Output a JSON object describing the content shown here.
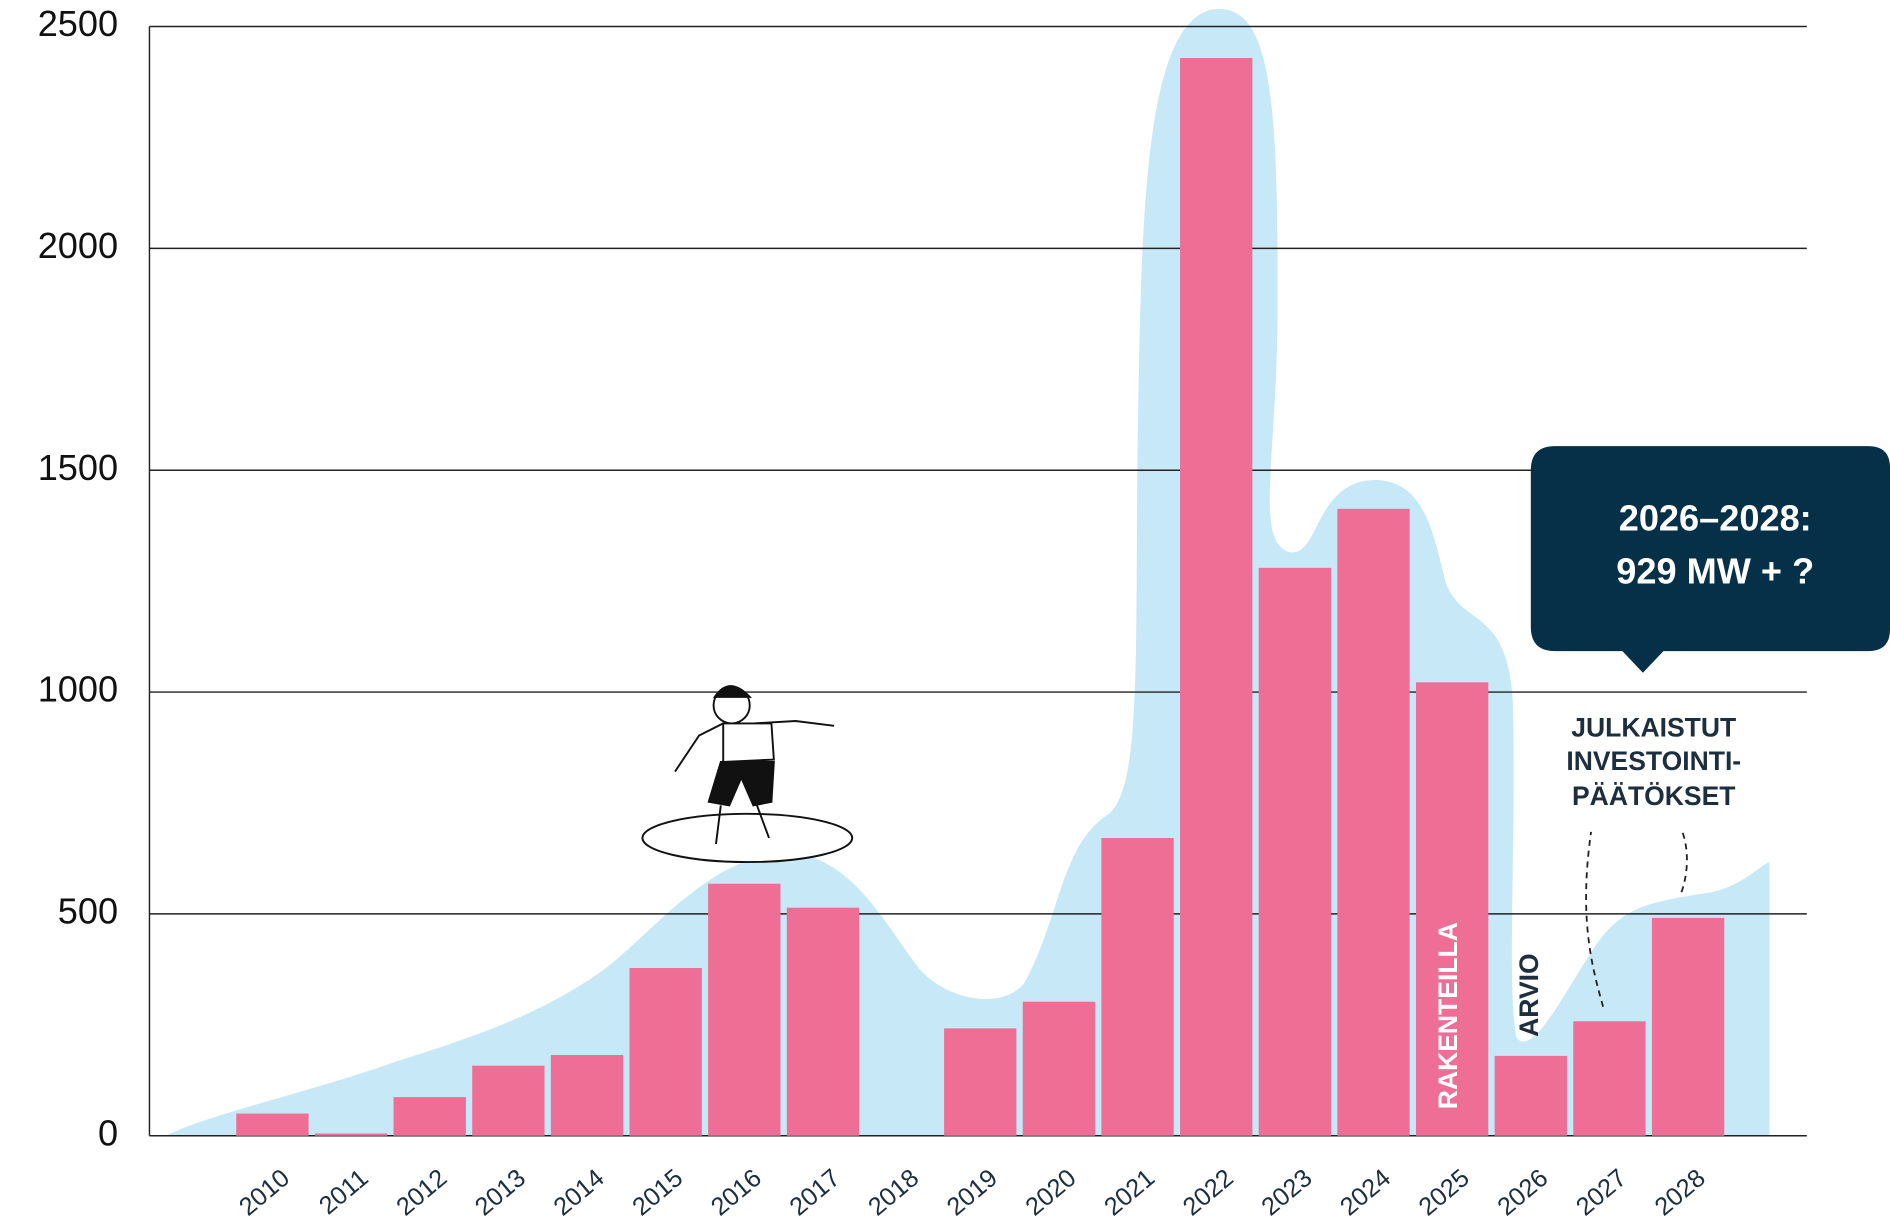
{
  "chart_data": {
    "type": "bar",
    "categories": [
      "2010",
      "2011",
      "2012",
      "2013",
      "2014",
      "2015",
      "2016",
      "2017",
      "2018",
      "2019",
      "2020",
      "2021",
      "2022",
      "2023",
      "2024",
      "2025",
      "2026",
      "2027",
      "2028"
    ],
    "values": [
      50,
      5,
      87,
      158,
      182,
      378,
      568,
      514,
      0,
      242,
      302,
      671,
      2429,
      1280,
      1413,
      1022,
      180,
      258,
      491
    ],
    "color": "#ee6e96",
    "ylim": [
      0,
      2500
    ],
    "yticks": [
      0,
      500,
      1000,
      1500,
      2000,
      2500
    ],
    "grid": true,
    "annotations": {
      "under_construction": "RAKENTEILLA",
      "estimate": "ARVIO",
      "published_decisions": [
        "JULKAISTUT",
        "INVESTOINTI-",
        "PÄÄTÖKSET"
      ],
      "callout": [
        "2026–2028:",
        "929 MW + ?"
      ]
    }
  }
}
